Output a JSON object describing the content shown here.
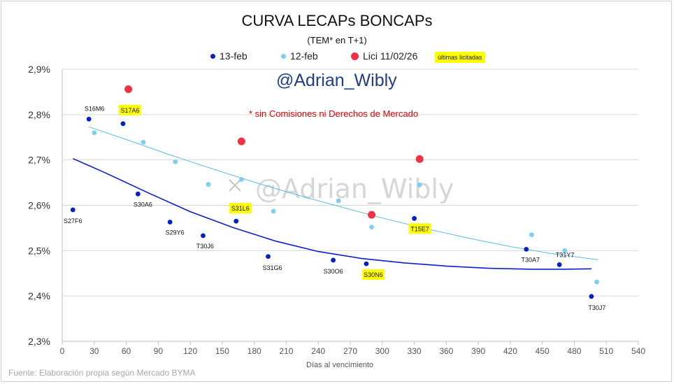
{
  "header": {
    "title": "CURVA LECAPs BONCAPs",
    "subtitle": "(TEM* en T+1)",
    "watermark": "@Adrian_Wibly",
    "watermark_center": "@Adrian_Wibly",
    "note": "* sin Comisiones ni Derechos de Mercado",
    "legend_highlight": "últimas licitadas"
  },
  "footer": {
    "source": "Fuente: Elaboración propia según Mercado BYMA"
  },
  "chart_data": {
    "type": "scatter",
    "title": "CURVA LECAPs BONCAPs",
    "subtitle": "(TEM* en T+1)",
    "xlabel": "Días al vencimiento",
    "ylabel": "",
    "xlim": [
      0,
      540
    ],
    "ylim": [
      2.3,
      2.9
    ],
    "x_ticks": [
      0,
      30,
      60,
      90,
      120,
      150,
      180,
      210,
      240,
      270,
      300,
      330,
      360,
      390,
      420,
      450,
      480,
      510,
      540
    ],
    "y_ticks": [
      {
        "value": 2.3,
        "label": "2,3%"
      },
      {
        "value": 2.4,
        "label": "2,4%"
      },
      {
        "value": 2.5,
        "label": "2,5%"
      },
      {
        "value": 2.6,
        "label": "2,6%"
      },
      {
        "value": 2.7,
        "label": "2,7%"
      },
      {
        "value": 2.8,
        "label": "2,8%"
      },
      {
        "value": 2.9,
        "label": "2,9%"
      }
    ],
    "grid": "horizontal",
    "legend_position": "top",
    "series": [
      {
        "name": "13-feb",
        "color": "#0020c8",
        "points": [
          {
            "x": 10,
            "y": 2.59,
            "label": "S27F6"
          },
          {
            "x": 25,
            "y": 2.79,
            "label": "S16M6"
          },
          {
            "x": 57,
            "y": 2.78,
            "label": "S17A6",
            "highlight": true
          },
          {
            "x": 71,
            "y": 2.625,
            "label": "S30A6"
          },
          {
            "x": 101,
            "y": 2.563,
            "label": "S29Y6"
          },
          {
            "x": 132,
            "y": 2.533,
            "label": "T30J6"
          },
          {
            "x": 163,
            "y": 2.565,
            "label": "S31L6",
            "highlight": true
          },
          {
            "x": 193,
            "y": 2.487,
            "label": "S31G6"
          },
          {
            "x": 254,
            "y": 2.479,
            "label": "S30O6"
          },
          {
            "x": 285,
            "y": 2.471,
            "label": "S30N6",
            "highlight": true
          },
          {
            "x": 330,
            "y": 2.571,
            "label": "T15E7",
            "highlight": true
          },
          {
            "x": 435,
            "y": 2.503,
            "label": "T30A7"
          },
          {
            "x": 466,
            "y": 2.469,
            "label": "T31Y7"
          },
          {
            "x": 496,
            "y": 2.399,
            "label": "T30J7"
          }
        ]
      },
      {
        "name": "12-feb",
        "color": "#7ccfee",
        "points": [
          {
            "x": 30,
            "y": 2.76
          },
          {
            "x": 76,
            "y": 2.739
          },
          {
            "x": 106,
            "y": 2.696
          },
          {
            "x": 137,
            "y": 2.646
          },
          {
            "x": 168,
            "y": 2.657
          },
          {
            "x": 198,
            "y": 2.587
          },
          {
            "x": 259,
            "y": 2.61
          },
          {
            "x": 290,
            "y": 2.552
          },
          {
            "x": 335,
            "y": 2.645
          },
          {
            "x": 440,
            "y": 2.535
          },
          {
            "x": 471,
            "y": 2.5
          },
          {
            "x": 501,
            "y": 2.431
          }
        ]
      },
      {
        "name": "Lici 11/02/26",
        "color": "#ee3344",
        "points": [
          {
            "x": 62,
            "y": 2.856
          },
          {
            "x": 168,
            "y": 2.741
          },
          {
            "x": 290,
            "y": 2.579
          },
          {
            "x": 335,
            "y": 2.702
          }
        ]
      }
    ],
    "trendlines": [
      {
        "series": "13-feb",
        "color": "#0a1ed6",
        "width": 1.6,
        "points": [
          [
            10,
            2.703
          ],
          [
            40,
            2.672
          ],
          [
            80,
            2.628
          ],
          [
            120,
            2.586
          ],
          [
            160,
            2.551
          ],
          [
            200,
            2.521
          ],
          [
            240,
            2.498
          ],
          [
            280,
            2.483
          ],
          [
            320,
            2.473
          ],
          [
            360,
            2.466
          ],
          [
            400,
            2.461
          ],
          [
            440,
            2.459
          ],
          [
            470,
            2.459
          ],
          [
            496,
            2.46
          ]
        ]
      },
      {
        "series": "12-feb",
        "color": "#5bbde6",
        "width": 1.0,
        "points": [
          [
            25,
            2.773
          ],
          [
            60,
            2.745
          ],
          [
            100,
            2.712
          ],
          [
            140,
            2.681
          ],
          [
            180,
            2.651
          ],
          [
            220,
            2.623
          ],
          [
            260,
            2.597
          ],
          [
            300,
            2.572
          ],
          [
            340,
            2.549
          ],
          [
            380,
            2.528
          ],
          [
            420,
            2.509
          ],
          [
            460,
            2.493
          ],
          [
            502,
            2.48
          ]
        ]
      }
    ]
  }
}
